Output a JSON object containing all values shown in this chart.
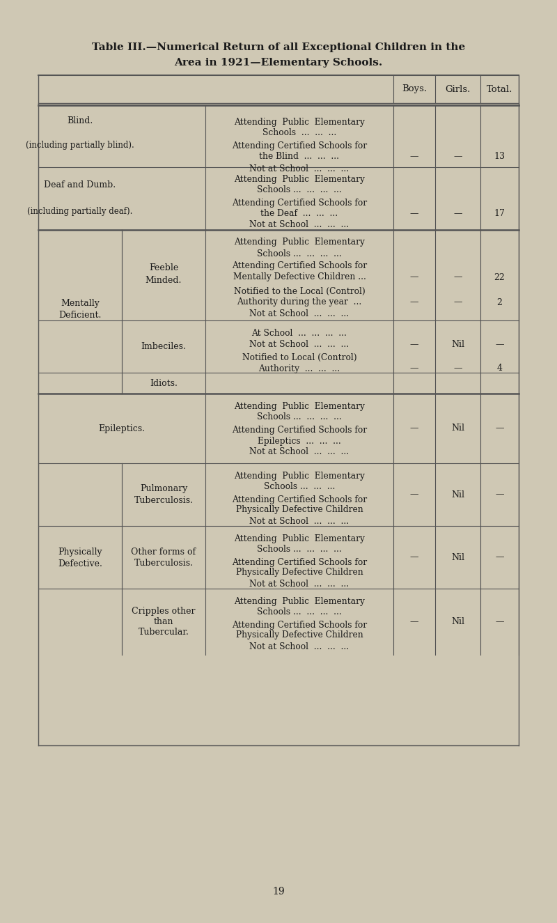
{
  "title_line1": "Table III.—Numerical Return of all Exceptional Children in the",
  "title_line2": "Area in 1921—Elementary Schools.",
  "bg_color": "#cfc8b4",
  "text_color": "#1a1a1a",
  "header": [
    "Boys.",
    "Girls.",
    "Total."
  ],
  "page_number": "19"
}
